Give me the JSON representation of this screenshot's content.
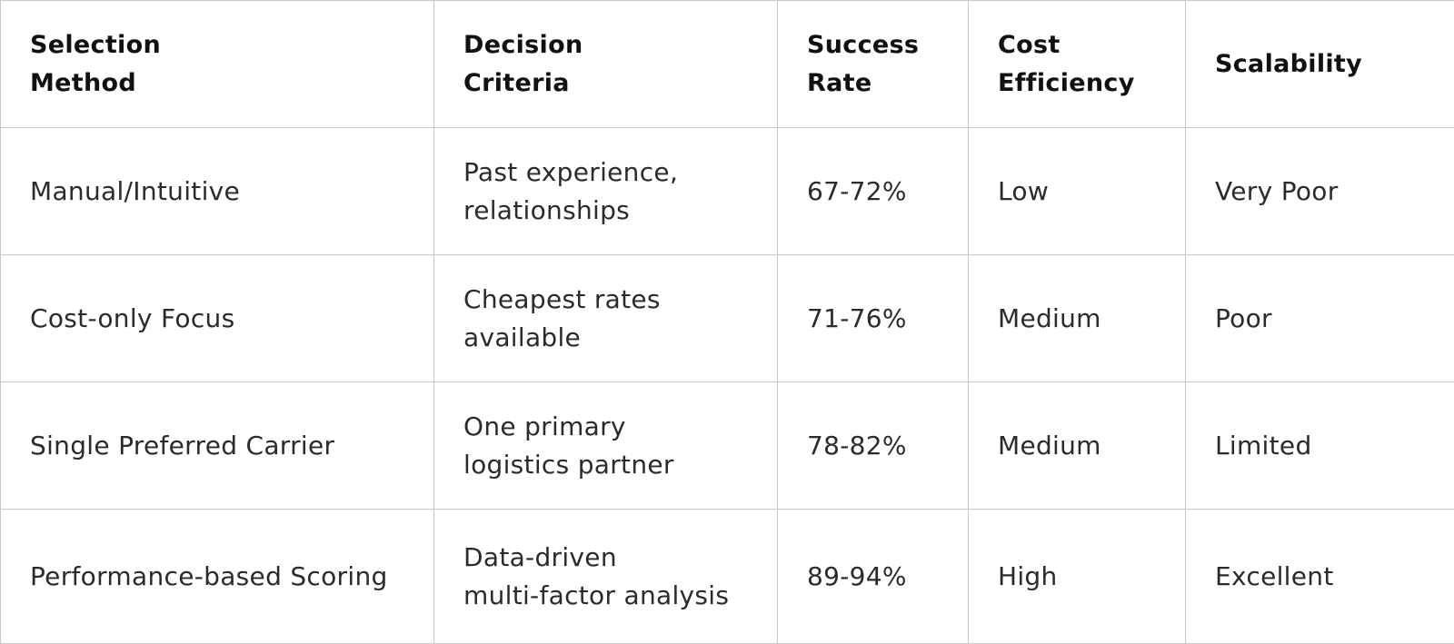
{
  "table": {
    "headers": [
      "Selection\nMethod",
      "Decision\nCriteria",
      "Success\nRate",
      "Cost\nEfficiency",
      "Scalability"
    ],
    "rows": [
      [
        "Manual/Intuitive",
        "Past experience,\nrelationships",
        "67-72%",
        "Low",
        "Very Poor"
      ],
      [
        "Cost-only Focus",
        "Cheapest rates\navailable",
        "71-76%",
        "Medium",
        "Poor"
      ],
      [
        "Single Preferred Carrier",
        "One primary\nlogistics partner",
        "78-82%",
        "Medium",
        "Limited"
      ],
      [
        "Performance-based Scoring",
        "Data-driven\nmulti-factor analysis",
        "89-94%",
        "High",
        "Excellent"
      ]
    ]
  },
  "colors": {
    "border": "#c8c8c8",
    "header_text": "#111111",
    "body_text": "#2b2b2b",
    "background": "#ffffff"
  }
}
